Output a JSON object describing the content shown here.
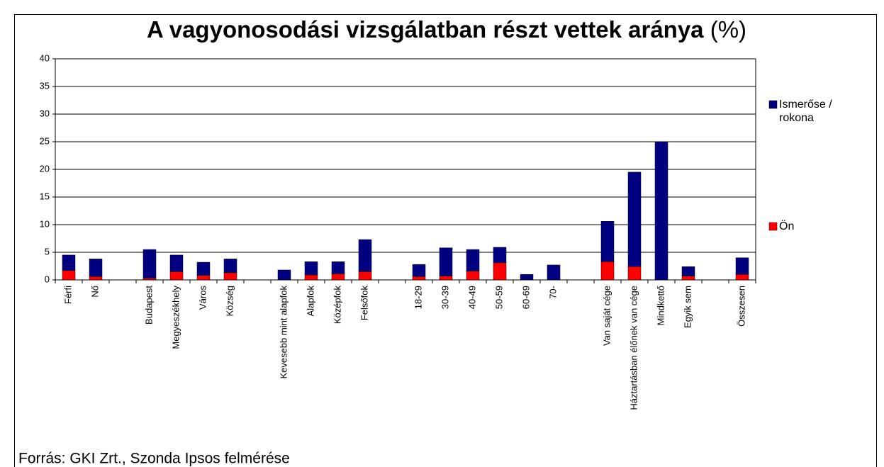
{
  "chart_data": {
    "type": "stacked_bar",
    "title": "A vagyonosodási vizsgálatban részt vettek aránya",
    "title_suffix": "(%)",
    "source": "Forrás: GKI Zrt., Szonda Ipsos felmérése",
    "categories": [
      "Férfi",
      "Nő",
      null,
      "Budapest",
      "Megyeszékhely",
      "Város",
      "Község",
      null,
      "Kevesebb mint alapfok",
      "Alapfok",
      "Középfok",
      "Felsőfok",
      null,
      "18-29",
      "30-39",
      "40-49",
      "50-59",
      "60-69",
      "70-",
      null,
      "Van saját cége",
      "Háztartásban élőnek van cége",
      "Mindkettő",
      "Egyik sem",
      null,
      "Összesen"
    ],
    "series": [
      {
        "name": "Ön",
        "color": "#ff0000",
        "values": [
          1.7,
          0.6,
          null,
          0.3,
          1.5,
          0.8,
          1.3,
          null,
          0,
          0.9,
          1.1,
          1.5,
          null,
          0.6,
          0.7,
          1.6,
          3.1,
          0,
          0,
          null,
          3.3,
          2.4,
          0,
          0.7,
          null,
          1.0
        ]
      },
      {
        "name": "Ismerőse / rokona",
        "color": "#000080",
        "values": [
          2.8,
          3.2,
          null,
          5.2,
          3.0,
          2.4,
          2.5,
          null,
          1.8,
          2.4,
          2.2,
          5.8,
          null,
          2.2,
          5.1,
          3.9,
          2.8,
          1.0,
          2.7,
          null,
          7.3,
          17.1,
          25,
          1.7,
          null,
          3.0
        ]
      }
    ],
    "ylim": [
      0,
      40
    ],
    "yticks": [
      0,
      5,
      10,
      15,
      20,
      25,
      30,
      35,
      40
    ],
    "grid": true,
    "legend": "right"
  }
}
